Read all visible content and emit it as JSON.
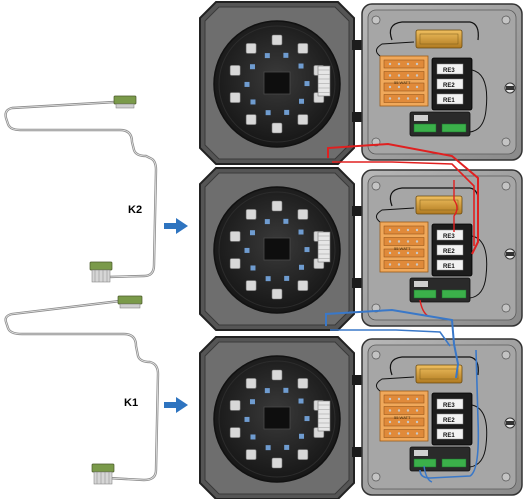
{
  "labels": {
    "k2": "K2",
    "k1": "K1"
  },
  "units": [
    {
      "id": "unit-top",
      "relays": [
        "RE3",
        "RE2",
        "RE1"
      ],
      "resistor_text": "55 WATT"
    },
    {
      "id": "unit-middle",
      "relays": [
        "RE3",
        "RE2",
        "RE1"
      ],
      "resistor_text": "55 WATT"
    },
    {
      "id": "unit-bottom",
      "relays": [
        "RE3",
        "RE2",
        "RE1"
      ],
      "resistor_text": "55 WATT"
    }
  ],
  "colors": {
    "wire_red": "#e02020",
    "wire_blue": "#3a78c8",
    "arrow_blue": "#2e74c0",
    "enclosure": "#9a9a9a",
    "pcb": "#1f1f1f",
    "relay": "#e08a3a",
    "resistor": "#d9a23a"
  },
  "icons": [
    "arrow-right-icon",
    "cable-icon",
    "connector-icon"
  ]
}
